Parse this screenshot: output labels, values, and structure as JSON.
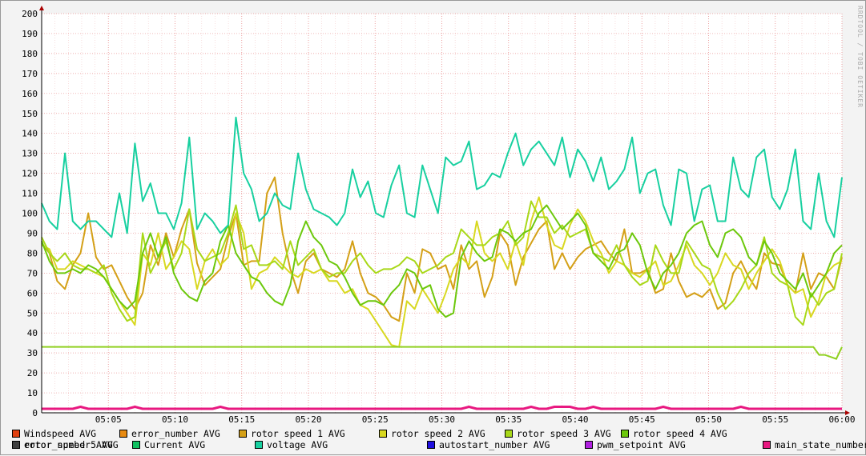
{
  "watermark": "RRDTOOL / TOBI OETIKER",
  "chart_data": {
    "type": "line",
    "y_ticks": [
      "0",
      "10",
      "20",
      "30",
      "40",
      "50",
      "60",
      "70",
      "80",
      "90",
      "100",
      "110",
      "120",
      "130",
      "140",
      "150",
      "160",
      "170",
      "180",
      "190",
      "200"
    ],
    "x_ticks": [
      "05:05",
      "05:10",
      "05:15",
      "05:20",
      "05:25",
      "05:30",
      "05:35",
      "05:40",
      "05:45",
      "05:50",
      "05:55",
      "06:00"
    ],
    "ylim": [
      0,
      200
    ],
    "x_start_minute": 0,
    "x_end_minute": 60,
    "grid": true,
    "series": [
      {
        "name": "Windspeed AVG",
        "color": "#e04010",
        "values": []
      },
      {
        "name": "error_number AVG",
        "color": "#e88a10",
        "values": []
      },
      {
        "name": "rotor speed 1 AVG",
        "color": "#d4a017",
        "values": [
          85,
          80,
          66,
          62,
          74,
          80,
          100,
          78,
          72,
          74,
          66,
          58,
          52,
          60,
          84,
          74,
          90,
          78,
          92,
          102,
          75,
          64,
          68,
          72,
          88,
          100,
          74,
          76,
          76,
          110,
          118,
          90,
          72,
          60,
          76,
          80,
          72,
          70,
          68,
          72,
          86,
          70,
          60,
          58,
          54,
          48,
          46,
          70,
          60,
          82,
          80,
          72,
          74,
          62,
          84,
          72,
          76,
          58,
          68,
          90,
          84,
          64,
          78,
          85,
          92,
          96,
          72,
          80,
          72,
          78,
          82,
          84,
          86,
          80,
          76,
          92,
          70,
          70,
          72,
          60,
          62,
          80,
          66,
          58,
          60,
          58,
          62,
          52,
          55,
          70,
          76,
          68,
          62,
          80,
          75,
          74,
          64,
          60,
          80,
          62,
          70,
          68,
          62,
          78
        ]
      },
      {
        "name": "rotor speed 2 AVG",
        "color": "#d8d820",
        "values": [
          84,
          82,
          72,
          72,
          76,
          74,
          72,
          70,
          68,
          62,
          56,
          50,
          44,
          80,
          74,
          90,
          72,
          78,
          86,
          82,
          62,
          76,
          82,
          74,
          78,
          100,
          90,
          62,
          70,
          72,
          78,
          74,
          70,
          68,
          72,
          70,
          72,
          66,
          66,
          60,
          62,
          54,
          52,
          46,
          40,
          34,
          33,
          56,
          52,
          62,
          56,
          50,
          60,
          72,
          78,
          74,
          96,
          80,
          76,
          80,
          72,
          86,
          74,
          96,
          108,
          94,
          84,
          82,
          94,
          102,
          96,
          86,
          80,
          70,
          76,
          74,
          70,
          68,
          72,
          76,
          64,
          66,
          74,
          84,
          74,
          70,
          64,
          70,
          80,
          74,
          72,
          62,
          70,
          76,
          82,
          76,
          64,
          60,
          62,
          48,
          56,
          70,
          74,
          76
        ]
      },
      {
        "name": "rotor speed 3 AVG",
        "color": "#a8d818",
        "values": [
          88,
          80,
          76,
          80,
          74,
          72,
          72,
          70,
          74,
          60,
          52,
          46,
          48,
          90,
          70,
          78,
          86,
          72,
          80,
          102,
          82,
          76,
          78,
          80,
          90,
          104,
          82,
          84,
          74,
          74,
          76,
          72,
          86,
          74,
          78,
          82,
          72,
          68,
          70,
          70,
          76,
          80,
          74,
          70,
          72,
          72,
          74,
          78,
          76,
          70,
          72,
          74,
          78,
          80,
          92,
          88,
          84,
          84,
          88,
          90,
          96,
          84,
          88,
          106,
          98,
          98,
          90,
          94,
          88,
          90,
          92,
          80,
          78,
          76,
          84,
          74,
          68,
          64,
          66,
          84,
          76,
          70,
          70,
          86,
          80,
          74,
          72,
          60,
          52,
          56,
          62,
          70,
          74,
          88,
          70,
          66,
          64,
          48,
          44,
          60,
          54,
          60,
          62,
          80
        ]
      },
      {
        "name": "rotor speed 4 AVG",
        "color": "#6cc80c",
        "values": [
          86,
          76,
          70,
          70,
          72,
          70,
          74,
          72,
          68,
          62,
          56,
          52,
          56,
          80,
          90,
          78,
          88,
          70,
          62,
          58,
          56,
          66,
          70,
          86,
          94,
          80,
          74,
          68,
          66,
          60,
          56,
          54,
          64,
          86,
          96,
          88,
          84,
          76,
          74,
          68,
          60,
          54,
          56,
          56,
          54,
          60,
          64,
          72,
          70,
          62,
          64,
          52,
          48,
          50,
          78,
          86,
          80,
          76,
          78,
          92,
          90,
          86,
          90,
          92,
          100,
          104,
          98,
          92,
          96,
          100,
          94,
          80,
          76,
          72,
          80,
          82,
          90,
          84,
          70,
          62,
          70,
          74,
          80,
          90,
          94,
          96,
          84,
          78,
          90,
          92,
          88,
          78,
          74,
          86,
          80,
          70,
          66,
          62,
          70,
          58,
          64,
          70,
          80,
          84
        ]
      },
      {
        "name": "rotor speed 5 AVG",
        "color": "#2cb82c",
        "values": []
      },
      {
        "name": "Current AVG",
        "color": "#10c060",
        "values": []
      },
      {
        "name": "voltage AVG",
        "color": "#18d0a0",
        "values": [
          105,
          96,
          92,
          130,
          96,
          92,
          96,
          96,
          92,
          88,
          110,
          90,
          135,
          106,
          115,
          100,
          100,
          92,
          105,
          138,
          92,
          100,
          96,
          90,
          94,
          148,
          120,
          112,
          96,
          100,
          110,
          104,
          102,
          130,
          112,
          102,
          100,
          98,
          94,
          100,
          122,
          108,
          116,
          100,
          98,
          114,
          124,
          100,
          98,
          124,
          112,
          100,
          128,
          124,
          126,
          136,
          112,
          114,
          120,
          118,
          130,
          140,
          124,
          132,
          136,
          130,
          124,
          138,
          118,
          132,
          126,
          116,
          128,
          112,
          116,
          122,
          138,
          110,
          120,
          122,
          104,
          94,
          122,
          120,
          96,
          112,
          114,
          96,
          96,
          128,
          112,
          108,
          128,
          132,
          108,
          102,
          112,
          132,
          96,
          92,
          120,
          96,
          88,
          118
        ]
      },
      {
        "name": "autostart_number AVG",
        "color": "#2010e0",
        "values": []
      },
      {
        "name": "pwm_setpoint AVG",
        "color": "#b020e0",
        "values": []
      },
      {
        "name": "main_state_number AVG",
        "color": "#e81880",
        "values": [
          2,
          2,
          2,
          2,
          2,
          3,
          2,
          2,
          2,
          2,
          2,
          2,
          3,
          2,
          2,
          2,
          2,
          2,
          2,
          2,
          2,
          2,
          2,
          3,
          2,
          2,
          2,
          2,
          2,
          2,
          2,
          2,
          2,
          2,
          2,
          2,
          2,
          2,
          2,
          2,
          2,
          2,
          2,
          2,
          2,
          2,
          2,
          2,
          2,
          2,
          2,
          2,
          2,
          2,
          2,
          3,
          2,
          2,
          2,
          2,
          2,
          2,
          2,
          3,
          2,
          2,
          3,
          3,
          3,
          2,
          2,
          3,
          2,
          2,
          2,
          2,
          2,
          2,
          2,
          2,
          3,
          2,
          2,
          2,
          2,
          2,
          2,
          2,
          2,
          2,
          3,
          2,
          2,
          2,
          2,
          2,
          2,
          2,
          2,
          2,
          2,
          2,
          2,
          2
        ]
      },
      {
        "name": "error_number AVG",
        "color": "#404040",
        "values": []
      }
    ],
    "constant_line": {
      "color": "#90d020",
      "values_start": 33,
      "tail": [
        33,
        33,
        29,
        29,
        28,
        27,
        33
      ]
    }
  }
}
